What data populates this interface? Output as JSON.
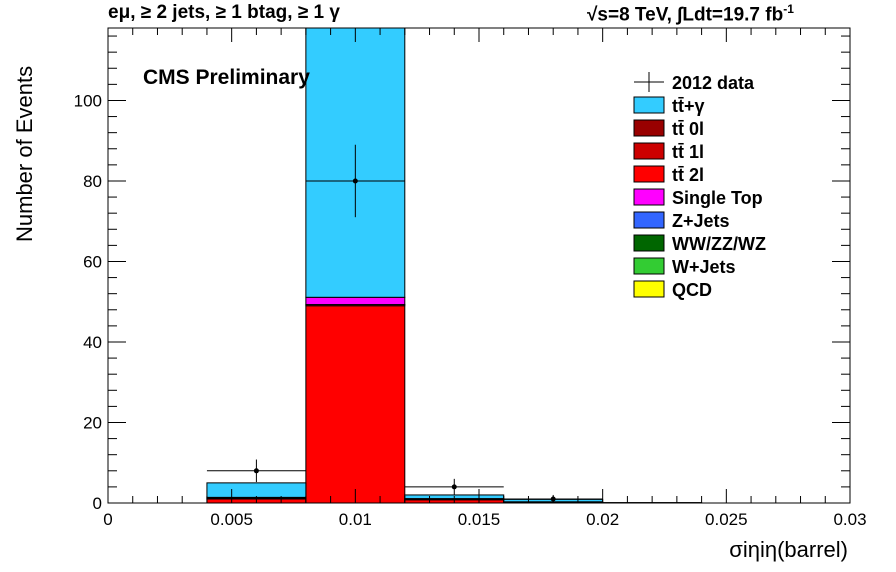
{
  "header": {
    "left": "eμ, ≥ 2 jets, ≥ 1 btag, ≥ 1 γ",
    "right": "√s=8 TeV,  ∫Ldt=19.7 fb",
    "right_sup": "-1"
  },
  "chart_data": {
    "type": "bar",
    "stacked": true,
    "title": "",
    "annotation": "CMS Preliminary",
    "xlabel": "σiηiη(barrel)",
    "ylabel": "Number of Events",
    "xlim": [
      0,
      0.03
    ],
    "ylim": [
      0,
      118
    ],
    "x_ticks": [
      0,
      0.005,
      0.01,
      0.015,
      0.02,
      0.025,
      0.03
    ],
    "x_tick_labels": [
      "0",
      "0.005",
      "0.01",
      "0.015",
      "0.02",
      "0.025",
      "0.03"
    ],
    "y_ticks": [
      0,
      20,
      40,
      60,
      80,
      100
    ],
    "y_tick_labels": [
      "0",
      "20",
      "40",
      "60",
      "80",
      "100"
    ],
    "grid": false,
    "legend_position": "top-right",
    "bin_edges": [
      0,
      0.004,
      0.008,
      0.012,
      0.016,
      0.02,
      0.024,
      0.028,
      0.03
    ],
    "series": [
      {
        "name": "tt̄ 2l",
        "color": "#ff0000",
        "values": [
          0,
          1.0,
          49.0,
          0.8,
          0.2,
          0.05,
          0,
          0
        ]
      },
      {
        "name": "tt̄ 1l",
        "color": "#cc0000",
        "values": [
          0,
          0.2,
          0.3,
          0.1,
          0,
          0,
          0,
          0
        ]
      },
      {
        "name": "Single Top",
        "color": "#ff00ff",
        "values": [
          0,
          0.2,
          1.8,
          0.2,
          0.1,
          0,
          0,
          0
        ]
      },
      {
        "name": "tt̄+γ",
        "color": "#33ccff",
        "values": [
          0,
          3.6,
          66.9,
          0.9,
          0.6,
          0.05,
          0,
          0
        ]
      }
    ],
    "data_series": {
      "name": "2012 data",
      "x": [
        0.006,
        0.01,
        0.014,
        0.018
      ],
      "y": [
        8,
        80,
        4,
        1
      ],
      "yerr": [
        2.8,
        9.0,
        2.0,
        1.0
      ],
      "xerr": 0.002
    },
    "legend_entries": [
      {
        "label": "2012 data",
        "color": "#000000",
        "marker": "data"
      },
      {
        "label": "tt̄+γ",
        "color": "#33ccff"
      },
      {
        "label": "tt̄ 0l",
        "color": "#990000"
      },
      {
        "label": "tt̄ 1l",
        "color": "#cc0000"
      },
      {
        "label": "tt̄ 2l",
        "color": "#ff0000"
      },
      {
        "label": "Single Top",
        "color": "#ff00ff"
      },
      {
        "label": "Z+Jets",
        "color": "#3366ff"
      },
      {
        "label": "WW/ZZ/WZ",
        "color": "#006600"
      },
      {
        "label": "W+Jets",
        "color": "#33cc33"
      },
      {
        "label": "QCD",
        "color": "#ffff00"
      }
    ]
  }
}
